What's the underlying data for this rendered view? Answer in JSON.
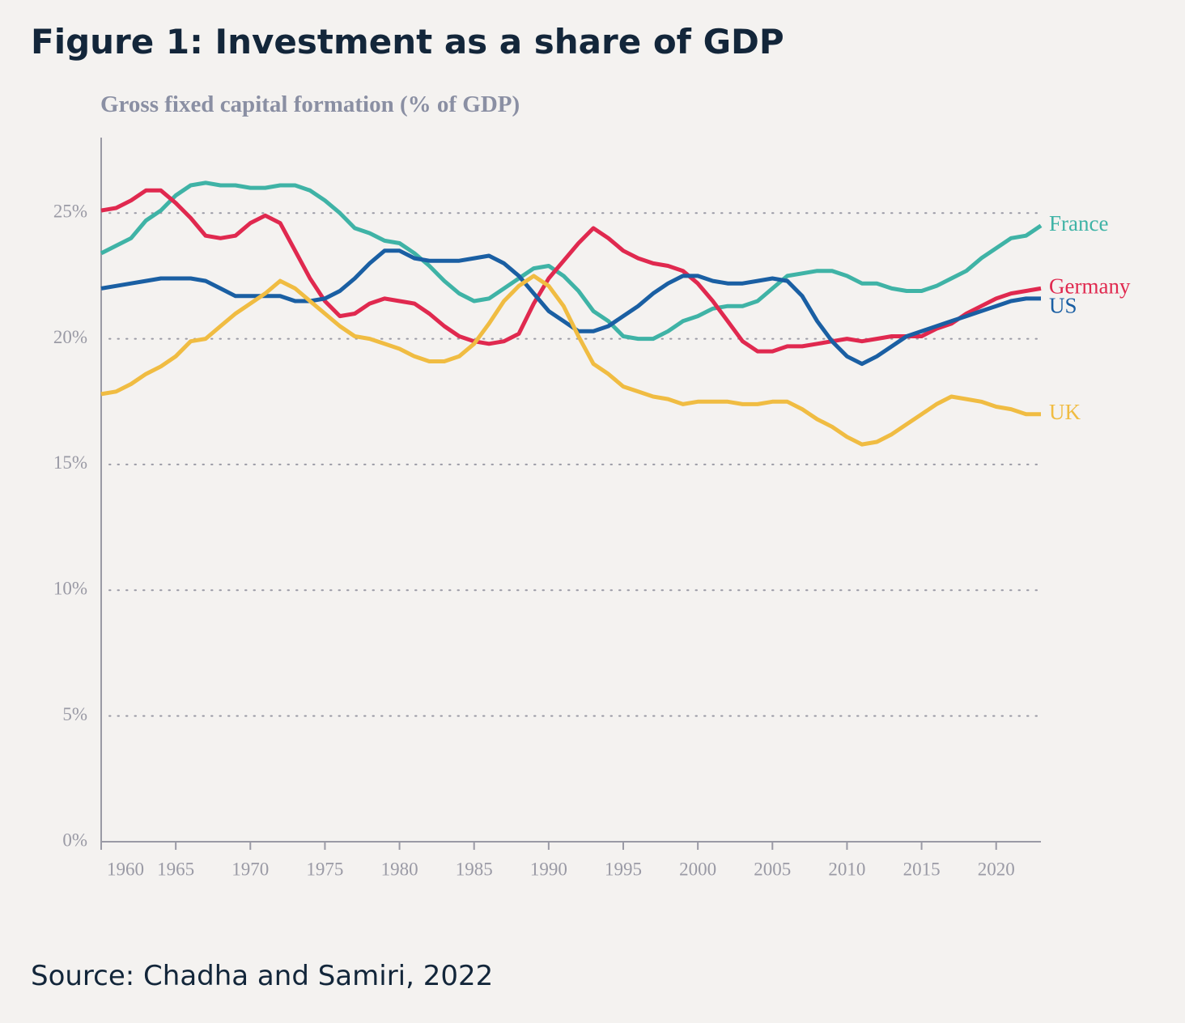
{
  "chart_data": {
    "type": "line",
    "title": "Figure 1: Investment as a share of GDP",
    "subtitle": "Gross fixed capital formation (% of GDP)",
    "source": "Source: Chadha and Samiri, 2022",
    "x": [
      1960,
      1961,
      1962,
      1963,
      1964,
      1965,
      1966,
      1967,
      1968,
      1969,
      1970,
      1971,
      1972,
      1973,
      1974,
      1975,
      1976,
      1977,
      1978,
      1979,
      1980,
      1981,
      1982,
      1983,
      1984,
      1985,
      1986,
      1987,
      1988,
      1989,
      1990,
      1991,
      1992,
      1993,
      1994,
      1995,
      1996,
      1997,
      1998,
      1999,
      2000,
      2001,
      2002,
      2003,
      2004,
      2005,
      2006,
      2007,
      2008,
      2009,
      2010,
      2011,
      2012,
      2013,
      2014,
      2015,
      2016,
      2017,
      2018,
      2019,
      2020,
      2021,
      2022,
      2023
    ],
    "xlim": [
      1960,
      2023
    ],
    "xticks": [
      1960,
      1965,
      1970,
      1975,
      1980,
      1985,
      1990,
      1995,
      2000,
      2005,
      2010,
      2015,
      2020
    ],
    "ylim": [
      0,
      28
    ],
    "yticks": [
      {
        "value": 0,
        "label": "0%"
      },
      {
        "value": 5,
        "label": "5%"
      },
      {
        "value": 10,
        "label": "10%"
      },
      {
        "value": 15,
        "label": "15%"
      },
      {
        "value": 20,
        "label": "20%"
      },
      {
        "value": 25,
        "label": "25%"
      }
    ],
    "grid": true,
    "series": [
      {
        "name": "France",
        "color": "#3fb3a6",
        "values": [
          23.4,
          23.7,
          24.0,
          24.7,
          25.1,
          25.7,
          26.1,
          26.2,
          26.1,
          26.1,
          26.0,
          26.0,
          26.1,
          26.1,
          25.9,
          25.5,
          25.0,
          24.4,
          24.2,
          23.9,
          23.8,
          23.4,
          22.9,
          22.3,
          21.8,
          21.5,
          21.6,
          22.0,
          22.4,
          22.8,
          22.9,
          22.5,
          21.9,
          21.1,
          20.7,
          20.1,
          20.0,
          20.0,
          20.3,
          20.7,
          20.9,
          21.2,
          21.3,
          21.3,
          21.5,
          22.0,
          22.5,
          22.6,
          22.7,
          22.7,
          22.5,
          22.2,
          22.2,
          22.0,
          21.9,
          21.9,
          22.1,
          22.4,
          22.7,
          23.2,
          23.6,
          24.0,
          24.1,
          24.5
        ]
      },
      {
        "name": "Germany",
        "color": "#e0294f",
        "values": [
          25.1,
          25.2,
          25.5,
          25.9,
          25.9,
          25.4,
          24.8,
          24.1,
          24.0,
          24.1,
          24.6,
          24.9,
          24.6,
          23.5,
          22.4,
          21.5,
          20.9,
          21.0,
          21.4,
          21.6,
          21.5,
          21.4,
          21.0,
          20.5,
          20.1,
          19.9,
          19.8,
          19.9,
          20.2,
          21.4,
          22.4,
          23.1,
          23.8,
          24.4,
          24.0,
          23.5,
          23.2,
          23.0,
          22.9,
          22.7,
          22.2,
          21.5,
          20.7,
          19.9,
          19.5,
          19.5,
          19.7,
          19.7,
          19.8,
          19.9,
          20.0,
          19.9,
          20.0,
          20.1,
          20.1,
          20.1,
          20.4,
          20.6,
          21.0,
          21.3,
          21.6,
          21.8,
          21.9,
          22.0
        ]
      },
      {
        "name": "US",
        "color": "#1a5fa3",
        "values": [
          22.0,
          22.1,
          22.2,
          22.3,
          22.4,
          22.4,
          22.4,
          22.3,
          22.0,
          21.7,
          21.7,
          21.7,
          21.7,
          21.5,
          21.5,
          21.6,
          21.9,
          22.4,
          23.0,
          23.5,
          23.5,
          23.2,
          23.1,
          23.1,
          23.1,
          23.2,
          23.3,
          23.0,
          22.5,
          21.8,
          21.1,
          20.7,
          20.3,
          20.3,
          20.5,
          20.9,
          21.3,
          21.8,
          22.2,
          22.5,
          22.5,
          22.3,
          22.2,
          22.2,
          22.3,
          22.4,
          22.3,
          21.7,
          20.7,
          19.9,
          19.3,
          19.0,
          19.3,
          19.7,
          20.1,
          20.3,
          20.5,
          20.7,
          20.9,
          21.1,
          21.3,
          21.5,
          21.6,
          21.6
        ]
      },
      {
        "name": "UK",
        "color": "#f0bc42",
        "values": [
          17.8,
          17.9,
          18.2,
          18.6,
          18.9,
          19.3,
          19.9,
          20.0,
          20.5,
          21.0,
          21.4,
          21.8,
          22.3,
          22.0,
          21.5,
          21.0,
          20.5,
          20.1,
          20.0,
          19.8,
          19.6,
          19.3,
          19.1,
          19.1,
          19.3,
          19.8,
          20.6,
          21.5,
          22.1,
          22.5,
          22.1,
          21.3,
          20.1,
          19.0,
          18.6,
          18.1,
          17.9,
          17.7,
          17.6,
          17.4,
          17.5,
          17.5,
          17.5,
          17.4,
          17.4,
          17.5,
          17.5,
          17.2,
          16.8,
          16.5,
          16.1,
          15.8,
          15.9,
          16.2,
          16.6,
          17.0,
          17.4,
          17.7,
          17.6,
          17.5,
          17.3,
          17.2,
          17.0,
          17.0
        ]
      }
    ]
  }
}
